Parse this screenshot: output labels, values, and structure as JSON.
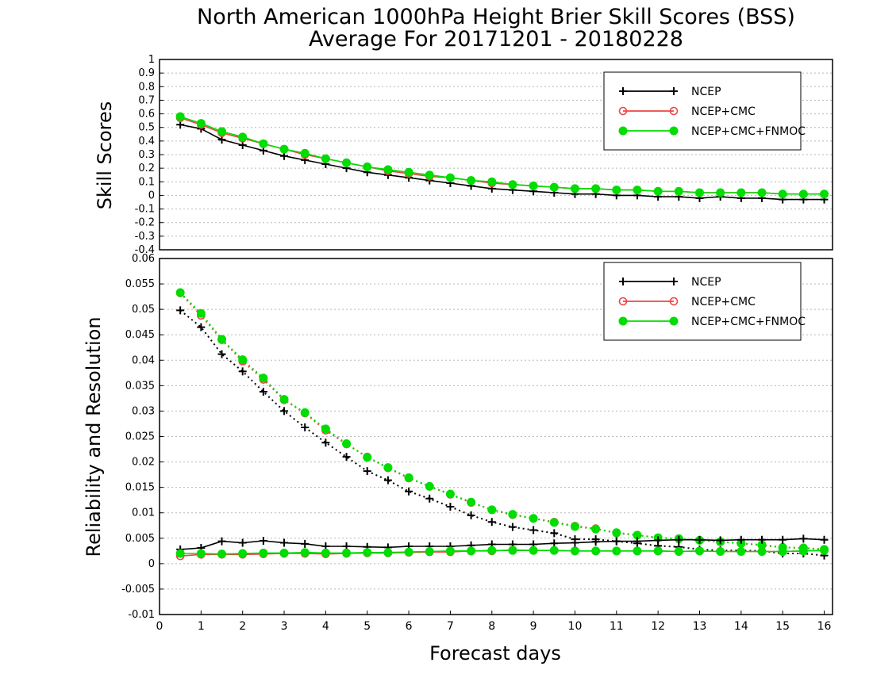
{
  "chart_data": [
    {
      "type": "line",
      "title": "North American 1000hPa Height Brier Skill Scores (BSS)",
      "subtitle": "Average For 20171201 - 20180228",
      "xlabel": "",
      "ylabel": "Skill Scores",
      "xlim": [
        0,
        16.2
      ],
      "ylim": [
        -0.4,
        1
      ],
      "yticks": [
        "1",
        "0.9",
        "0.8",
        "0.7",
        "0.6",
        "0.5",
        "0.4",
        "0.3",
        "0.2",
        "0.1",
        "0",
        "-0.1",
        "-0.2",
        "-0.3",
        "-0.4"
      ],
      "grid": true,
      "legend_position": "top-right",
      "x": [
        0.5,
        1,
        1.5,
        2,
        2.5,
        3,
        3.5,
        4,
        4.5,
        5,
        5.5,
        6,
        6.5,
        7,
        7.5,
        8,
        8.5,
        9,
        9.5,
        10,
        10.5,
        11,
        11.5,
        12,
        12.5,
        13,
        13.5,
        14,
        14.5,
        15,
        15.5,
        16
      ],
      "series": [
        {
          "name": "NCEP",
          "color": "#000000",
          "marker": "plus",
          "values": [
            0.52,
            0.49,
            0.41,
            0.37,
            0.33,
            0.29,
            0.26,
            0.23,
            0.2,
            0.17,
            0.15,
            0.13,
            0.11,
            0.09,
            0.07,
            0.05,
            0.04,
            0.03,
            0.02,
            0.01,
            0.01,
            0.0,
            0.0,
            -0.01,
            -0.01,
            -0.02,
            -0.01,
            -0.02,
            -0.02,
            -0.03,
            -0.03,
            -0.03
          ]
        },
        {
          "name": "NCEP+CMC",
          "color": "#ee4444",
          "marker": "open-circle",
          "values": [
            0.57,
            0.52,
            0.46,
            0.42,
            0.38,
            0.34,
            0.3,
            0.27,
            0.24,
            0.21,
            0.18,
            0.16,
            0.14,
            0.13,
            0.11,
            0.09,
            0.08,
            0.07,
            0.06,
            0.05,
            0.05,
            0.04,
            0.04,
            0.03,
            0.03,
            0.02,
            0.02,
            0.02,
            0.02,
            0.01,
            0.01,
            0.01
          ]
        },
        {
          "name": "NCEP+CMC+FNMOC",
          "color": "#00dd00",
          "marker": "filled-circle",
          "values": [
            0.58,
            0.53,
            0.47,
            0.43,
            0.38,
            0.34,
            0.31,
            0.27,
            0.24,
            0.21,
            0.19,
            0.17,
            0.15,
            0.13,
            0.11,
            0.1,
            0.08,
            0.07,
            0.06,
            0.05,
            0.05,
            0.04,
            0.04,
            0.03,
            0.03,
            0.02,
            0.02,
            0.02,
            0.02,
            0.01,
            0.01,
            0.01
          ]
        }
      ]
    },
    {
      "type": "line",
      "xlabel": "Forecast days",
      "ylabel": "Reliability and Resolution",
      "xlim": [
        0,
        16.2
      ],
      "ylim": [
        -0.01,
        0.06
      ],
      "xticks": [
        "0",
        "1",
        "2",
        "3",
        "4",
        "5",
        "6",
        "7",
        "8",
        "9",
        "10",
        "11",
        "12",
        "13",
        "14",
        "15",
        "16"
      ],
      "yticks": [
        "0.06",
        "0.055",
        "0.05",
        "0.045",
        "0.04",
        "0.035",
        "0.03",
        "0.025",
        "0.02",
        "0.015",
        "0.01",
        "0.005",
        "0",
        "-0.005",
        "-0.01"
      ],
      "grid": true,
      "legend_position": "top-right",
      "x": [
        0.5,
        1,
        1.5,
        2,
        2.5,
        3,
        3.5,
        4,
        4.5,
        5,
        5.5,
        6,
        6.5,
        7,
        7.5,
        8,
        8.5,
        9,
        9.5,
        10,
        10.5,
        11,
        11.5,
        12,
        12.5,
        13,
        13.5,
        14,
        14.5,
        15,
        15.5,
        16
      ],
      "series": [
        {
          "name": "NCEP",
          "color": "#000000",
          "marker": "plus",
          "line": "dotted",
          "quantity": "resolution",
          "values": [
            0.0498,
            0.0465,
            0.0412,
            0.0378,
            0.0338,
            0.03,
            0.0268,
            0.0238,
            0.021,
            0.0182,
            0.0164,
            0.0142,
            0.0128,
            0.0112,
            0.0095,
            0.0082,
            0.0072,
            0.0066,
            0.006,
            0.0048,
            0.0048,
            0.0044,
            0.004,
            0.0035,
            0.0033,
            0.0028,
            0.0026,
            0.0026,
            0.0025,
            0.002,
            0.002,
            0.0016
          ]
        },
        {
          "name": "NCEP+CMC",
          "color": "#ee4444",
          "marker": "open-circle",
          "line": "dotted",
          "quantity": "resolution",
          "values": [
            0.0532,
            0.0488,
            0.044,
            0.0398,
            0.0362,
            0.0322,
            0.0296,
            0.0262,
            0.0235,
            0.021,
            0.0188,
            0.0168,
            0.0152,
            0.0136,
            0.012,
            0.0106,
            0.0096,
            0.0089,
            0.0082,
            0.0074,
            0.0069,
            0.006,
            0.0056,
            0.0051,
            0.0049,
            0.0046,
            0.0043,
            0.004,
            0.0036,
            0.0032,
            0.0031,
            0.0028
          ]
        },
        {
          "name": "NCEP+CMC+FNMOC",
          "color": "#00dd00",
          "marker": "filled-circle",
          "line": "dotted",
          "quantity": "resolution",
          "values": [
            0.0533,
            0.0492,
            0.0441,
            0.0401,
            0.0365,
            0.0323,
            0.0297,
            0.0265,
            0.0236,
            0.0209,
            0.0189,
            0.0169,
            0.0152,
            0.0137,
            0.0121,
            0.0106,
            0.0097,
            0.0089,
            0.0081,
            0.0073,
            0.0068,
            0.0061,
            0.0056,
            0.0051,
            0.0049,
            0.0046,
            0.0043,
            0.004,
            0.0037,
            0.0032,
            0.0031,
            0.0028
          ]
        },
        {
          "name": "NCEP",
          "color": "#000000",
          "marker": "plus",
          "line": "solid",
          "quantity": "reliability",
          "values": [
            0.0028,
            0.0031,
            0.0044,
            0.0041,
            0.0045,
            0.0041,
            0.0039,
            0.0034,
            0.0034,
            0.0033,
            0.0032,
            0.0034,
            0.0034,
            0.0034,
            0.0036,
            0.0038,
            0.0038,
            0.0038,
            0.004,
            0.0041,
            0.0043,
            0.0044,
            0.0044,
            0.0046,
            0.0047,
            0.0047,
            0.0046,
            0.0047,
            0.0047,
            0.0047,
            0.0049,
            0.0047
          ]
        },
        {
          "name": "NCEP+CMC",
          "color": "#ee4444",
          "marker": "open-circle",
          "line": "solid",
          "quantity": "reliability",
          "values": [
            0.0015,
            0.0018,
            0.0018,
            0.0018,
            0.0019,
            0.002,
            0.002,
            0.0019,
            0.002,
            0.0021,
            0.0021,
            0.0022,
            0.0023,
            0.0023,
            0.0025,
            0.0025,
            0.0027,
            0.0026,
            0.0026,
            0.0025,
            0.0025,
            0.0025,
            0.0025,
            0.0025,
            0.0024,
            0.0025,
            0.0024,
            0.0024,
            0.0024,
            0.0024,
            0.0025,
            0.0026
          ]
        },
        {
          "name": "NCEP+CMC+FNMOC",
          "color": "#00dd00",
          "marker": "filled-circle",
          "line": "solid",
          "quantity": "reliability",
          "values": [
            0.002,
            0.002,
            0.0019,
            0.002,
            0.0021,
            0.0021,
            0.0022,
            0.0021,
            0.0021,
            0.0022,
            0.0022,
            0.0023,
            0.0024,
            0.0025,
            0.0025,
            0.0026,
            0.0026,
            0.0026,
            0.0026,
            0.0025,
            0.0025,
            0.0025,
            0.0025,
            0.0025,
            0.0024,
            0.0025,
            0.0024,
            0.0024,
            0.0024,
            0.0024,
            0.0025,
            0.0026
          ]
        }
      ]
    }
  ]
}
